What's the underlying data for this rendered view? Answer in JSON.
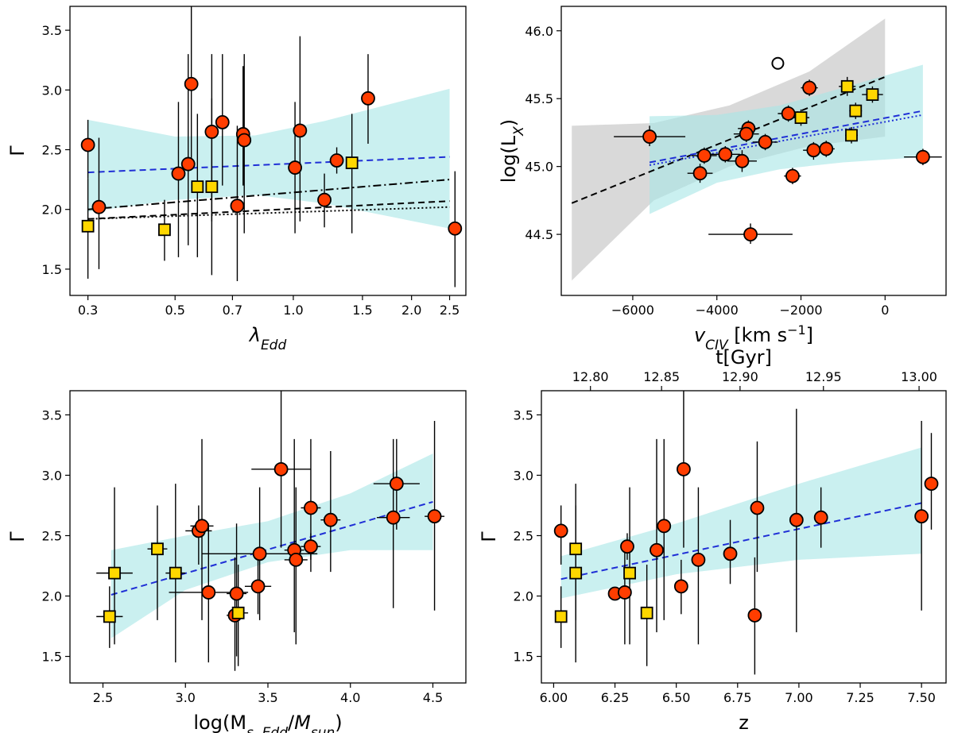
{
  "colors": {
    "band": "#a6e6e6",
    "band_grey": "#c9c9c9",
    "circle": "#ff3d00",
    "square": "#ffd700",
    "fit_blue": "#1f2fd6",
    "edge": "#000000"
  },
  "chart_data": [
    {
      "id": "p1",
      "type": "scatter",
      "xscale": "log",
      "xlabel": "λEdd",
      "ylabel": "Γ",
      "xlim": [
        0.27,
        2.75
      ],
      "ylim": [
        1.28,
        3.7
      ],
      "xticks": [
        0.3,
        0.5,
        0.7,
        1.0,
        1.5,
        2.0,
        2.5
      ],
      "xtick_labels": [
        "0.3",
        "0.5",
        "0.7",
        "1.0",
        "1.5",
        "2.0",
        "2.5"
      ],
      "yticks": [
        1.5,
        2.0,
        2.5,
        3.0,
        3.5
      ],
      "ytick_labels": [
        "1.5",
        "2.0",
        "2.5",
        "3.0",
        "3.5"
      ],
      "band": {
        "x": [
          0.3,
          0.5,
          0.8,
          1.2,
          2.5
        ],
        "lo": [
          1.98,
          2.08,
          2.12,
          2.05,
          1.84
        ],
        "hi": [
          2.75,
          2.61,
          2.62,
          2.74,
          3.01
        ]
      },
      "fits": [
        {
          "style": "blue-dashed",
          "x": [
            0.3,
            2.5
          ],
          "y": [
            2.31,
            2.44
          ]
        },
        {
          "style": "black-dashdot",
          "x": [
            0.3,
            2.5
          ],
          "y": [
            2.0,
            2.25
          ]
        },
        {
          "style": "black-dashed",
          "x": [
            0.3,
            2.5
          ],
          "y": [
            1.92,
            2.07
          ]
        },
        {
          "style": "black-dotted",
          "x": [
            0.3,
            2.5
          ],
          "y": [
            1.92,
            2.02
          ]
        }
      ],
      "points": [
        {
          "x": 0.3,
          "y": 2.54,
          "ylo": 2.26,
          "yhi": 2.75,
          "m": "circle"
        },
        {
          "x": 0.32,
          "y": 2.02,
          "ylo": 1.5,
          "yhi": 2.6,
          "m": "circle"
        },
        {
          "x": 0.51,
          "y": 2.3,
          "ylo": 1.6,
          "yhi": 2.9,
          "m": "circle"
        },
        {
          "x": 0.54,
          "y": 2.38,
          "ylo": 1.7,
          "yhi": 3.3,
          "m": "circle"
        },
        {
          "x": 0.55,
          "y": 3.05,
          "ylo": 2.4,
          "yhi": 3.7,
          "m": "circle"
        },
        {
          "x": 0.62,
          "y": 2.65,
          "ylo": 1.9,
          "yhi": 3.3,
          "m": "circle"
        },
        {
          "x": 0.66,
          "y": 2.73,
          "ylo": 2.2,
          "yhi": 3.3,
          "m": "circle"
        },
        {
          "x": 0.72,
          "y": 2.03,
          "ylo": 1.4,
          "yhi": 2.7,
          "m": "circle"
        },
        {
          "x": 0.745,
          "y": 2.63,
          "ylo": 2.2,
          "yhi": 3.2,
          "m": "circle"
        },
        {
          "x": 0.75,
          "y": 2.58,
          "ylo": 1.8,
          "yhi": 3.3,
          "m": "circle"
        },
        {
          "x": 1.01,
          "y": 2.35,
          "ylo": 1.8,
          "yhi": 2.9,
          "m": "circle"
        },
        {
          "x": 1.04,
          "y": 2.66,
          "ylo": 1.9,
          "yhi": 3.45,
          "m": "circle"
        },
        {
          "x": 1.2,
          "y": 2.08,
          "ylo": 1.85,
          "yhi": 2.3,
          "m": "circle"
        },
        {
          "x": 1.29,
          "y": 2.41,
          "ylo": 2.3,
          "yhi": 2.52,
          "m": "circle"
        },
        {
          "x": 1.55,
          "y": 2.93,
          "ylo": 2.55,
          "yhi": 3.3,
          "m": "circle"
        },
        {
          "x": 2.58,
          "y": 1.84,
          "ylo": 1.35,
          "yhi": 2.32,
          "m": "circle"
        },
        {
          "x": 0.3,
          "y": 1.86,
          "ylo": 1.42,
          "yhi": 2.26,
          "m": "square"
        },
        {
          "x": 0.47,
          "y": 1.83,
          "ylo": 1.57,
          "yhi": 2.08,
          "m": "square"
        },
        {
          "x": 0.57,
          "y": 2.19,
          "ylo": 1.6,
          "yhi": 2.8,
          "m": "square"
        },
        {
          "x": 0.62,
          "y": 2.19,
          "ylo": 1.45,
          "yhi": 2.93,
          "m": "square"
        },
        {
          "x": 1.41,
          "y": 2.39,
          "ylo": 1.8,
          "yhi": 2.8,
          "m": "square"
        }
      ]
    },
    {
      "id": "p2",
      "type": "scatter",
      "xscale": "linear",
      "xlabel": "vCIV [km s−1]",
      "ylabel": "log(LX)",
      "xlim": [
        -7700,
        1450
      ],
      "ylim": [
        44.05,
        46.18
      ],
      "xticks": [
        -6000,
        -4000,
        -2000,
        0
      ],
      "xtick_labels": [
        "−6000",
        "−4000",
        "−2000",
        "0"
      ],
      "yticks": [
        44.5,
        45.0,
        45.5,
        46.0
      ],
      "ytick_labels": [
        "44.5",
        "45.0",
        "45.5",
        "46.0"
      ],
      "band_grey": {
        "x": [
          -7450,
          -5500,
          -3700,
          -1800,
          0
        ],
        "lo": [
          44.16,
          44.75,
          45.0,
          45.15,
          45.22
        ],
        "hi": [
          45.3,
          45.32,
          45.45,
          45.7,
          46.09
        ]
      },
      "band": {
        "x": [
          -5600,
          -4000,
          -2500,
          -1000,
          900
        ],
        "lo": [
          44.65,
          44.88,
          44.98,
          45.03,
          45.07
        ],
        "hi": [
          45.37,
          45.38,
          45.45,
          45.58,
          45.75
        ]
      },
      "fits": [
        {
          "style": "black-dashed",
          "x": [
            -7450,
            0
          ],
          "y": [
            44.73,
            45.66
          ]
        },
        {
          "style": "blue-dashed",
          "x": [
            -5600,
            900
          ],
          "y": [
            45.03,
            45.41
          ]
        },
        {
          "style": "blue-dotted",
          "x": [
            -5600,
            900
          ],
          "y": [
            45.01,
            45.38
          ]
        }
      ],
      "points": [
        {
          "x": -5600,
          "y": 45.22,
          "xlo": -6450,
          "xhi": -4750,
          "ylo": 45.15,
          "yhi": 45.3,
          "m": "circle"
        },
        {
          "x": -4300,
          "y": 45.08,
          "xlo": -4600,
          "xhi": -4000,
          "ylo": 45.02,
          "yhi": 45.14,
          "m": "circle"
        },
        {
          "x": -4400,
          "y": 44.95,
          "xlo": -4700,
          "xhi": -4100,
          "ylo": 44.88,
          "yhi": 45.02,
          "m": "circle"
        },
        {
          "x": -3800,
          "y": 45.09,
          "xlo": -4150,
          "xhi": -3450,
          "ylo": 45.03,
          "yhi": 45.15,
          "m": "circle"
        },
        {
          "x": -3250,
          "y": 45.28,
          "xlo": -3500,
          "xhi": -3000,
          "ylo": 45.22,
          "yhi": 45.34,
          "m": "circle"
        },
        {
          "x": -3300,
          "y": 45.24,
          "xlo": -3600,
          "xhi": -3000,
          "ylo": 45.18,
          "yhi": 45.3,
          "m": "circle"
        },
        {
          "x": -3400,
          "y": 45.04,
          "xlo": -3750,
          "xhi": -3050,
          "ylo": 44.96,
          "yhi": 45.12,
          "m": "circle"
        },
        {
          "x": -3200,
          "y": 44.5,
          "xlo": -4200,
          "xhi": -2200,
          "ylo": 44.43,
          "yhi": 44.58,
          "m": "circle"
        },
        {
          "x": -2850,
          "y": 45.18,
          "xlo": -3150,
          "xhi": -2550,
          "ylo": 45.12,
          "yhi": 45.24,
          "m": "circle"
        },
        {
          "x": -2300,
          "y": 45.39,
          "xlo": -2550,
          "xhi": -2050,
          "ylo": 45.33,
          "yhi": 45.45,
          "m": "circle"
        },
        {
          "x": -2200,
          "y": 44.93,
          "xlo": -2400,
          "xhi": -2000,
          "ylo": 44.87,
          "yhi": 44.99,
          "m": "circle"
        },
        {
          "x": -1800,
          "y": 45.58,
          "xlo": -2000,
          "xhi": -1600,
          "ylo": 45.52,
          "yhi": 45.64,
          "m": "circle"
        },
        {
          "x": -1700,
          "y": 45.12,
          "xlo": -1950,
          "xhi": -1450,
          "ylo": 45.05,
          "yhi": 45.18,
          "m": "circle"
        },
        {
          "x": -1400,
          "y": 45.13,
          "xlo": -1600,
          "xhi": -1200,
          "ylo": 45.07,
          "yhi": 45.19,
          "m": "circle"
        },
        {
          "x": 900,
          "y": 45.07,
          "xlo": 450,
          "xhi": 1350,
          "ylo": 45.01,
          "yhi": 45.13,
          "m": "circle"
        },
        {
          "x": -2000,
          "y": 45.36,
          "xlo": -2200,
          "xhi": -1800,
          "ylo": 45.3,
          "yhi": 45.42,
          "m": "square"
        },
        {
          "x": -900,
          "y": 45.59,
          "xlo": -1100,
          "xhi": -700,
          "ylo": 45.52,
          "yhi": 45.66,
          "m": "square"
        },
        {
          "x": -700,
          "y": 45.41,
          "xlo": -850,
          "xhi": -550,
          "ylo": 45.35,
          "yhi": 45.47,
          "m": "square"
        },
        {
          "x": -800,
          "y": 45.23,
          "xlo": -950,
          "xhi": -650,
          "ylo": 45.17,
          "yhi": 45.29,
          "m": "square"
        },
        {
          "x": -300,
          "y": 45.53,
          "xlo": -550,
          "xhi": -50,
          "ylo": 45.47,
          "yhi": 45.59,
          "m": "square"
        },
        {
          "x": -2550,
          "y": 45.76,
          "m": "open"
        }
      ]
    },
    {
      "id": "p3",
      "type": "scatter",
      "xscale": "linear",
      "xlabel": "log(Ms,Edd/Msun)",
      "ylabel": "Γ",
      "xlim": [
        2.3,
        4.7
      ],
      "ylim": [
        1.28,
        3.7
      ],
      "xticks": [
        2.5,
        3.0,
        3.5,
        4.0,
        4.5
      ],
      "xtick_labels": [
        "2.5",
        "3.0",
        "3.5",
        "4.0",
        "4.5"
      ],
      "yticks": [
        1.5,
        2.0,
        2.5,
        3.0,
        3.5
      ],
      "ytick_labels": [
        "1.5",
        "2.0",
        "2.5",
        "3.0",
        "3.5"
      ],
      "band": {
        "x": [
          2.55,
          3.0,
          3.5,
          4.0,
          4.5
        ],
        "lo": [
          1.65,
          2.05,
          2.28,
          2.38,
          2.38
        ],
        "hi": [
          2.38,
          2.5,
          2.62,
          2.85,
          3.18
        ]
      },
      "fits": [
        {
          "style": "blue-dashed",
          "x": [
            2.55,
            4.5
          ],
          "y": [
            2.01,
            2.78
          ]
        }
      ],
      "points": [
        {
          "x": 3.08,
          "y": 2.54,
          "xlo": 3.0,
          "xhi": 3.16,
          "ylo": 2.26,
          "yhi": 2.75,
          "m": "circle"
        },
        {
          "x": 3.1,
          "y": 2.58,
          "xlo": 3.03,
          "xhi": 3.17,
          "ylo": 1.8,
          "yhi": 3.3,
          "m": "circle"
        },
        {
          "x": 3.14,
          "y": 2.03,
          "xlo": 2.9,
          "xhi": 3.38,
          "ylo": 1.45,
          "yhi": 2.6,
          "m": "circle"
        },
        {
          "x": 3.3,
          "y": 1.84,
          "xlo": 3.25,
          "xhi": 3.35,
          "ylo": 1.38,
          "yhi": 2.32,
          "m": "circle"
        },
        {
          "x": 3.31,
          "y": 2.02,
          "xlo": 3.25,
          "xhi": 3.37,
          "ylo": 1.5,
          "yhi": 2.6,
          "m": "circle"
        },
        {
          "x": 3.44,
          "y": 2.08,
          "xlo": 3.36,
          "xhi": 3.52,
          "ylo": 1.85,
          "yhi": 2.3,
          "m": "circle"
        },
        {
          "x": 3.45,
          "y": 2.35,
          "xlo": 3.1,
          "xhi": 3.8,
          "ylo": 1.8,
          "yhi": 2.9,
          "m": "circle"
        },
        {
          "x": 3.58,
          "y": 3.05,
          "xlo": 3.4,
          "xhi": 3.76,
          "ylo": 2.4,
          "yhi": 3.7,
          "m": "circle"
        },
        {
          "x": 3.66,
          "y": 2.38,
          "xlo": 3.6,
          "xhi": 3.72,
          "ylo": 1.7,
          "yhi": 3.3,
          "m": "circle"
        },
        {
          "x": 3.67,
          "y": 2.3,
          "xlo": 3.6,
          "xhi": 3.74,
          "ylo": 1.6,
          "yhi": 2.9,
          "m": "circle"
        },
        {
          "x": 3.76,
          "y": 2.73,
          "xlo": 3.7,
          "xhi": 3.82,
          "ylo": 2.2,
          "yhi": 3.3,
          "m": "circle"
        },
        {
          "x": 3.76,
          "y": 2.41,
          "xlo": 3.7,
          "xhi": 3.82,
          "ylo": 2.3,
          "yhi": 2.52,
          "m": "circle"
        },
        {
          "x": 3.88,
          "y": 2.63,
          "xlo": 3.82,
          "xhi": 3.94,
          "ylo": 2.2,
          "yhi": 3.2,
          "m": "circle"
        },
        {
          "x": 4.26,
          "y": 2.65,
          "xlo": 4.16,
          "xhi": 4.36,
          "ylo": 1.9,
          "yhi": 3.3,
          "m": "circle"
        },
        {
          "x": 4.28,
          "y": 2.93,
          "xlo": 4.14,
          "xhi": 4.42,
          "ylo": 2.55,
          "yhi": 3.3,
          "m": "circle"
        },
        {
          "x": 4.51,
          "y": 2.66,
          "xlo": 4.45,
          "xhi": 4.57,
          "ylo": 1.88,
          "yhi": 3.45,
          "m": "circle"
        },
        {
          "x": 2.54,
          "y": 1.83,
          "xlo": 2.46,
          "xhi": 2.62,
          "ylo": 1.57,
          "yhi": 2.08,
          "m": "square"
        },
        {
          "x": 2.57,
          "y": 2.19,
          "xlo": 2.46,
          "xhi": 2.68,
          "ylo": 1.6,
          "yhi": 2.9,
          "m": "square"
        },
        {
          "x": 2.83,
          "y": 2.39,
          "xlo": 2.77,
          "xhi": 2.89,
          "ylo": 1.8,
          "yhi": 2.75,
          "m": "square"
        },
        {
          "x": 2.94,
          "y": 2.19,
          "xlo": 2.88,
          "xhi": 3.0,
          "ylo": 1.45,
          "yhi": 2.93,
          "m": "square"
        },
        {
          "x": 3.32,
          "y": 1.86,
          "xlo": 3.26,
          "xhi": 3.38,
          "ylo": 1.42,
          "yhi": 2.26,
          "m": "square"
        }
      ]
    },
    {
      "id": "p4",
      "type": "scatter",
      "xscale": "linear",
      "xlabel": "z",
      "ylabel": "Γ",
      "top_xlabel": "t[Gyr]",
      "xlim": [
        5.95,
        7.6
      ],
      "ylim": [
        1.28,
        3.7
      ],
      "xticks": [
        6.0,
        6.25,
        6.5,
        6.75,
        7.0,
        7.25,
        7.5
      ],
      "xtick_labels": [
        "6.00",
        "6.25",
        "6.50",
        "6.75",
        "7.00",
        "7.25",
        "7.50"
      ],
      "top_ticks_at_z": [
        6.15,
        6.44,
        6.76,
        7.1,
        7.49
      ],
      "top_tick_labels": [
        "12.80",
        "12.85",
        "12.90",
        "12.95",
        "13.00"
      ],
      "yticks": [
        1.5,
        2.0,
        2.5,
        3.0,
        3.5
      ],
      "ytick_labels": [
        "1.5",
        "2.0",
        "2.5",
        "3.0",
        "3.5"
      ],
      "band": {
        "x": [
          6.03,
          6.5,
          7.0,
          7.5
        ],
        "lo": [
          1.98,
          2.18,
          2.3,
          2.35
        ],
        "hi": [
          2.33,
          2.6,
          2.93,
          3.23
        ]
      },
      "fits": [
        {
          "style": "blue-dashed",
          "x": [
            6.03,
            7.5
          ],
          "y": [
            2.14,
            2.77
          ]
        }
      ],
      "points": [
        {
          "x": 6.03,
          "y": 2.54,
          "ylo": 2.26,
          "yhi": 2.75,
          "m": "circle"
        },
        {
          "x": 6.25,
          "y": 2.02,
          "ylo": 2.02,
          "yhi": 2.02,
          "m": "circle"
        },
        {
          "x": 6.29,
          "y": 2.03,
          "ylo": 1.6,
          "yhi": 2.45,
          "m": "circle"
        },
        {
          "x": 6.3,
          "y": 2.41,
          "ylo": 2.3,
          "yhi": 2.52,
          "m": "circle"
        },
        {
          "x": 6.42,
          "y": 2.38,
          "ylo": 1.7,
          "yhi": 3.3,
          "m": "circle"
        },
        {
          "x": 6.45,
          "y": 2.58,
          "ylo": 1.8,
          "yhi": 3.3,
          "m": "circle"
        },
        {
          "x": 6.52,
          "y": 2.08,
          "ylo": 1.85,
          "yhi": 2.3,
          "m": "circle"
        },
        {
          "x": 6.53,
          "y": 3.05,
          "ylo": 2.4,
          "yhi": 3.7,
          "m": "circle"
        },
        {
          "x": 6.59,
          "y": 2.3,
          "ylo": 1.6,
          "yhi": 2.9,
          "m": "circle"
        },
        {
          "x": 6.72,
          "y": 2.35,
          "ylo": 2.1,
          "yhi": 2.63,
          "m": "circle"
        },
        {
          "x": 6.82,
          "y": 1.84,
          "ylo": 1.35,
          "yhi": 2.32,
          "m": "circle"
        },
        {
          "x": 6.83,
          "y": 2.73,
          "ylo": 2.2,
          "yhi": 3.28,
          "m": "circle"
        },
        {
          "x": 6.99,
          "y": 2.63,
          "ylo": 1.7,
          "yhi": 3.55,
          "m": "circle"
        },
        {
          "x": 7.09,
          "y": 2.65,
          "ylo": 2.4,
          "yhi": 2.9,
          "m": "circle"
        },
        {
          "x": 7.5,
          "y": 2.66,
          "ylo": 1.88,
          "yhi": 3.45,
          "m": "circle"
        },
        {
          "x": 7.54,
          "y": 2.93,
          "ylo": 2.55,
          "yhi": 3.35,
          "m": "circle"
        },
        {
          "x": 6.03,
          "y": 1.83,
          "ylo": 1.57,
          "yhi": 2.08,
          "m": "square"
        },
        {
          "x": 6.09,
          "y": 2.39,
          "ylo": 1.8,
          "yhi": 2.75,
          "m": "square"
        },
        {
          "x": 6.09,
          "y": 2.19,
          "ylo": 1.45,
          "yhi": 2.93,
          "m": "square"
        },
        {
          "x": 6.31,
          "y": 2.19,
          "ylo": 1.6,
          "yhi": 2.9,
          "m": "square"
        },
        {
          "x": 6.38,
          "y": 1.86,
          "ylo": 1.42,
          "yhi": 2.26,
          "m": "square"
        }
      ]
    }
  ]
}
